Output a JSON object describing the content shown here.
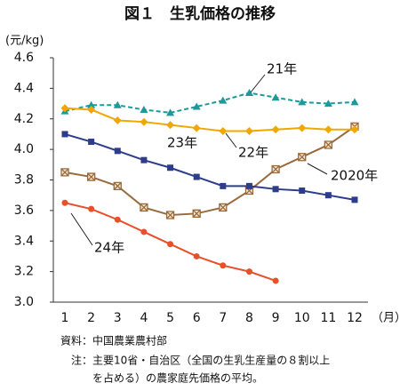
{
  "chart_data": {
    "type": "line",
    "title": "図１　生乳価格の推移",
    "y_label": "(元/kg)",
    "x_label": "（月）",
    "categories": [
      "1",
      "2",
      "3",
      "4",
      "5",
      "6",
      "7",
      "8",
      "9",
      "10",
      "11",
      "12"
    ],
    "ylim": [
      3.0,
      4.6
    ],
    "yticks": [
      {
        "value": 3,
        "label": "3.0"
      },
      3.2,
      3.4,
      3.6,
      3.8,
      {
        "value": 4,
        "label": "4.0"
      },
      4.2,
      4.4,
      4.6
    ],
    "series": [
      {
        "name": "2020年",
        "color": "#9a6a3c",
        "marker": "x-square",
        "values": [
          3.85,
          3.82,
          3.76,
          3.62,
          3.57,
          3.58,
          3.62,
          3.73,
          3.87,
          3.95,
          4.03,
          4.15
        ]
      },
      {
        "name": "21年",
        "color": "#1c9a9a",
        "marker": "triangle",
        "dash": true,
        "values": [
          4.25,
          4.29,
          4.29,
          4.26,
          4.24,
          4.28,
          4.32,
          4.37,
          4.34,
          4.31,
          4.3,
          4.31
        ]
      },
      {
        "name": "22年",
        "color": "#f0a800",
        "marker": "diamond",
        "values": [
          4.27,
          4.26,
          4.19,
          4.18,
          4.16,
          4.14,
          4.12,
          4.12,
          4.13,
          4.14,
          4.13,
          4.13
        ]
      },
      {
        "name": "23年",
        "color": "#2e3c8c",
        "marker": "square",
        "values": [
          4.1,
          4.05,
          3.99,
          3.93,
          3.88,
          3.82,
          3.76,
          3.76,
          3.74,
          3.73,
          3.7,
          3.67
        ]
      },
      {
        "name": "24年",
        "color": "#e8502a",
        "marker": "circle",
        "values": [
          3.65,
          3.61,
          3.54,
          3.46,
          3.38,
          3.3,
          3.24,
          3.2,
          3.14,
          null,
          null,
          null
        ]
      }
    ],
    "notes": [
      "資料：中国農業農村部",
      "注：主要10省・自治区（全国の生乳生産量の８割以上",
      "を占める）の農家庭先価格の平均。"
    ]
  }
}
